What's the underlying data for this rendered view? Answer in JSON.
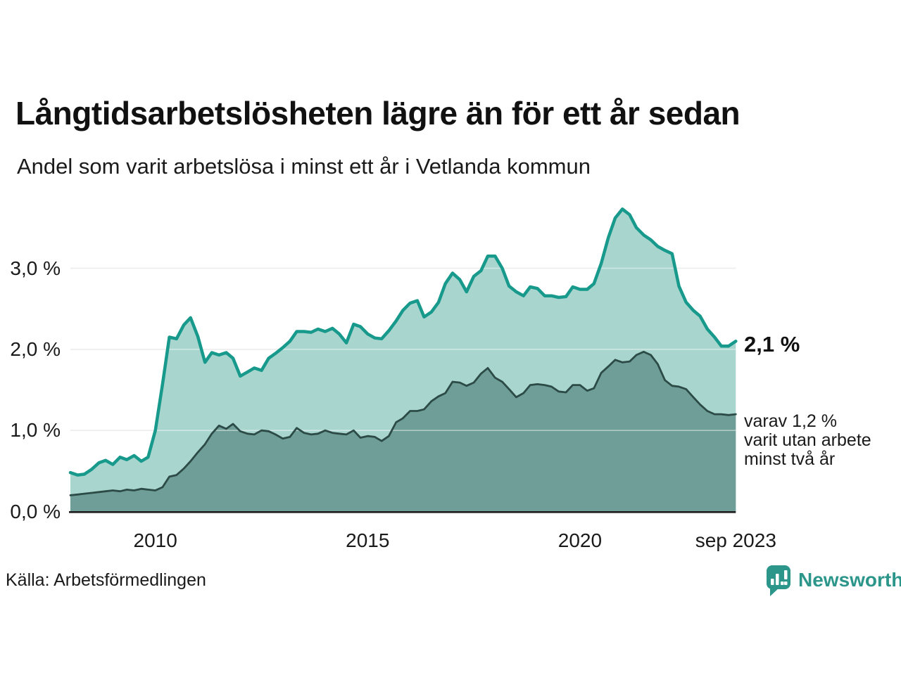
{
  "chart_data": {
    "type": "area",
    "title": "Långtidsarbetslösheten lägre än för ett år sedan",
    "subtitle": "Andel som varit arbetslösa i minst ett år i Vetlanda kommun",
    "unit": "%",
    "xlim": [
      2008,
      2023.67
    ],
    "ylim": [
      0,
      4
    ],
    "grid": "horizontal",
    "legend": "none",
    "x": [
      2008,
      2008.17,
      2008.33,
      2008.5,
      2008.67,
      2008.83,
      2009,
      2009.17,
      2009.33,
      2009.5,
      2009.67,
      2009.83,
      2010,
      2010.17,
      2010.33,
      2010.5,
      2010.67,
      2010.83,
      2011,
      2011.17,
      2011.33,
      2011.5,
      2011.67,
      2011.83,
      2012,
      2012.17,
      2012.33,
      2012.5,
      2012.67,
      2012.83,
      2013,
      2013.17,
      2013.33,
      2013.5,
      2013.67,
      2013.83,
      2014,
      2014.17,
      2014.33,
      2014.5,
      2014.67,
      2014.83,
      2015,
      2015.17,
      2015.33,
      2015.5,
      2015.67,
      2015.83,
      2016,
      2016.17,
      2016.33,
      2016.5,
      2016.67,
      2016.83,
      2017,
      2017.17,
      2017.33,
      2017.5,
      2017.67,
      2017.83,
      2018,
      2018.17,
      2018.33,
      2018.5,
      2018.67,
      2018.83,
      2019,
      2019.17,
      2019.33,
      2019.5,
      2019.67,
      2019.83,
      2020,
      2020.17,
      2020.33,
      2020.5,
      2020.67,
      2020.83,
      2021,
      2021.17,
      2021.33,
      2021.5,
      2021.67,
      2021.83,
      2022,
      2022.17,
      2022.33,
      2022.5,
      2022.67,
      2022.83,
      2023,
      2023.17,
      2023.33,
      2023.5,
      2023.67
    ],
    "series": [
      {
        "name": "Arbetslösa minst ett år",
        "values": [
          0.48,
          0.45,
          0.46,
          0.52,
          0.6,
          0.63,
          0.58,
          0.67,
          0.64,
          0.69,
          0.62,
          0.67,
          1.0,
          1.57,
          2.15,
          2.13,
          2.3,
          2.39,
          2.16,
          1.84,
          1.96,
          1.93,
          1.96,
          1.89,
          1.67,
          1.72,
          1.77,
          1.74,
          1.89,
          1.95,
          2.02,
          2.1,
          2.22,
          2.22,
          2.21,
          2.25,
          2.22,
          2.26,
          2.19,
          2.08,
          2.31,
          2.28,
          2.19,
          2.14,
          2.13,
          2.23,
          2.35,
          2.48,
          2.57,
          2.6,
          2.4,
          2.46,
          2.58,
          2.81,
          2.94,
          2.86,
          2.71,
          2.9,
          2.97,
          3.15,
          3.15,
          3.0,
          2.78,
          2.71,
          2.66,
          2.77,
          2.75,
          2.66,
          2.66,
          2.64,
          2.65,
          2.77,
          2.74,
          2.74,
          2.81,
          3.06,
          3.38,
          3.62,
          3.73,
          3.66,
          3.5,
          3.41,
          3.35,
          3.27,
          3.22,
          3.18,
          2.78,
          2.58,
          2.48,
          2.41,
          2.25,
          2.15,
          2.04,
          2.04,
          2.1
        ]
      },
      {
        "name": "Varav utan arbete minst två år",
        "values": [
          0.2,
          0.21,
          0.22,
          0.23,
          0.24,
          0.25,
          0.26,
          0.25,
          0.27,
          0.26,
          0.28,
          0.27,
          0.26,
          0.3,
          0.43,
          0.45,
          0.53,
          0.62,
          0.73,
          0.83,
          0.96,
          1.06,
          1.02,
          1.08,
          0.99,
          0.96,
          0.95,
          1.0,
          0.99,
          0.95,
          0.9,
          0.92,
          1.03,
          0.97,
          0.95,
          0.96,
          1.0,
          0.97,
          0.96,
          0.95,
          1.0,
          0.91,
          0.93,
          0.92,
          0.87,
          0.93,
          1.1,
          1.15,
          1.24,
          1.24,
          1.26,
          1.36,
          1.42,
          1.46,
          1.6,
          1.59,
          1.55,
          1.59,
          1.7,
          1.77,
          1.65,
          1.6,
          1.51,
          1.41,
          1.46,
          1.56,
          1.57,
          1.56,
          1.54,
          1.48,
          1.47,
          1.56,
          1.56,
          1.49,
          1.52,
          1.71,
          1.79,
          1.87,
          1.84,
          1.85,
          1.93,
          1.97,
          1.93,
          1.82,
          1.62,
          1.55,
          1.54,
          1.51,
          1.41,
          1.32,
          1.24,
          1.2,
          1.2,
          1.19,
          1.2
        ]
      }
    ],
    "y_ticks": {
      "values": [
        0,
        1,
        2,
        3
      ],
      "labels": [
        "0,0 %",
        "1,0 %",
        "2,0 %",
        "3,0 %"
      ]
    },
    "x_ticks": [
      {
        "label": "2010",
        "year": 2010
      },
      {
        "label": "2015",
        "year": 2015
      },
      {
        "label": "2020",
        "year": 2020
      },
      {
        "label": "sep 2023",
        "year": 2023.67
      }
    ],
    "colors": {
      "line_total": "#17998c",
      "fill_total": "#a8d5ce",
      "line_two_year": "#2c4b46",
      "fill_two_year": "#6f9e98",
      "grid": "#dcdfde",
      "grid_overlay": "rgba(255,255,255,0.45)",
      "axis": "#1c1c1c"
    }
  },
  "annotations": {
    "latest_total": "2,1 %",
    "two_year_note": "varav 1,2 %\nvarit utan arbete\nminst två år"
  },
  "source": {
    "label": "Källa: Arbetsförmedlingen"
  },
  "branding": {
    "name": "Newsworthy",
    "color": "#2d968b",
    "icon": "bar-chart-bubble"
  }
}
